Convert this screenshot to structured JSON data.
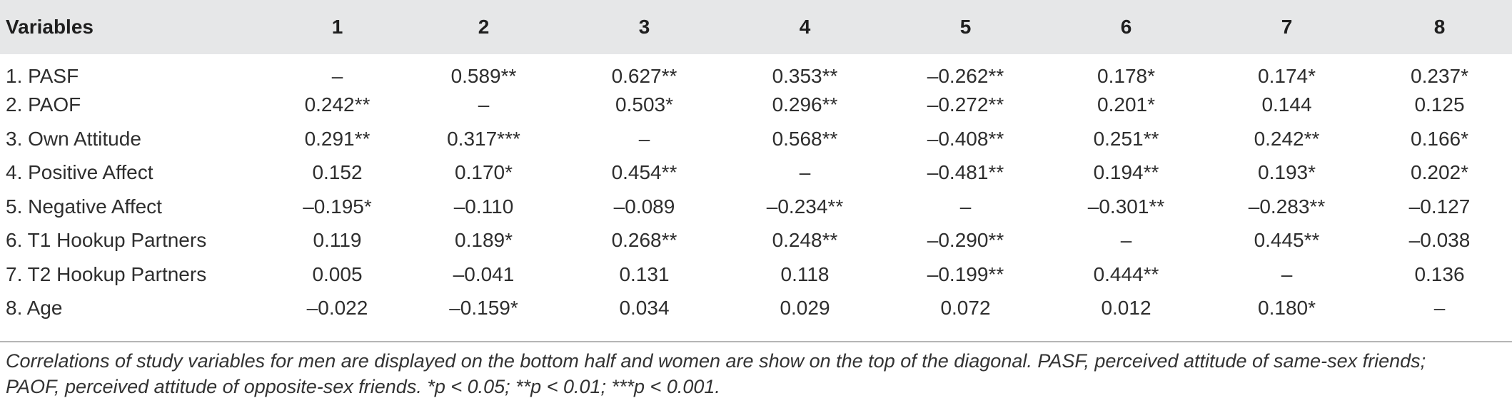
{
  "table": {
    "headers": [
      "Variables",
      "1",
      "2",
      "3",
      "4",
      "5",
      "6",
      "7",
      "8"
    ],
    "rows": [
      [
        "1. PASF",
        "–",
        "0.589**",
        "0.627**",
        "0.353**",
        "–0.262**",
        "0.178*",
        "0.174*",
        "0.237*"
      ],
      [
        "2. PAOF",
        "0.242**",
        "–",
        "0.503*",
        "0.296**",
        "–0.272**",
        "0.201*",
        "0.144",
        "0.125"
      ],
      [
        "3. Own Attitude",
        "0.291**",
        "0.317***",
        "–",
        "0.568**",
        "–0.408**",
        "0.251**",
        "0.242**",
        "0.166*"
      ],
      [
        "4. Positive Affect",
        "0.152",
        "0.170*",
        "0.454**",
        "–",
        "–0.481**",
        "0.194**",
        "0.193*",
        "0.202*"
      ],
      [
        "5. Negative Affect",
        "–0.195*",
        "–0.110",
        "–0.089",
        "–0.234**",
        "–",
        "–0.301**",
        "–0.283**",
        "–0.127"
      ],
      [
        "6. T1 Hookup Partners",
        "0.119",
        "0.189*",
        "0.268**",
        "0.248**",
        "–0.290**",
        "–",
        "0.445**",
        "–0.038"
      ],
      [
        "7. T2 Hookup Partners",
        "0.005",
        "–0.041",
        "0.131",
        "0.118",
        "–0.199**",
        "0.444**",
        "–",
        "0.136"
      ],
      [
        "8. Age",
        "–0.022",
        "–0.159*",
        "0.034",
        "0.029",
        "0.072",
        "0.012",
        "0.180*",
        "–"
      ]
    ]
  },
  "note": {
    "line1": "Correlations of study variables for men are displayed on the bottom half and women are show on the top of the diagonal. PASF, perceived attitude of same-sex friends;",
    "line2": "PAOF, perceived attitude of opposite-sex friends. *p < 0.05; **p < 0.01; ***p < 0.001."
  }
}
